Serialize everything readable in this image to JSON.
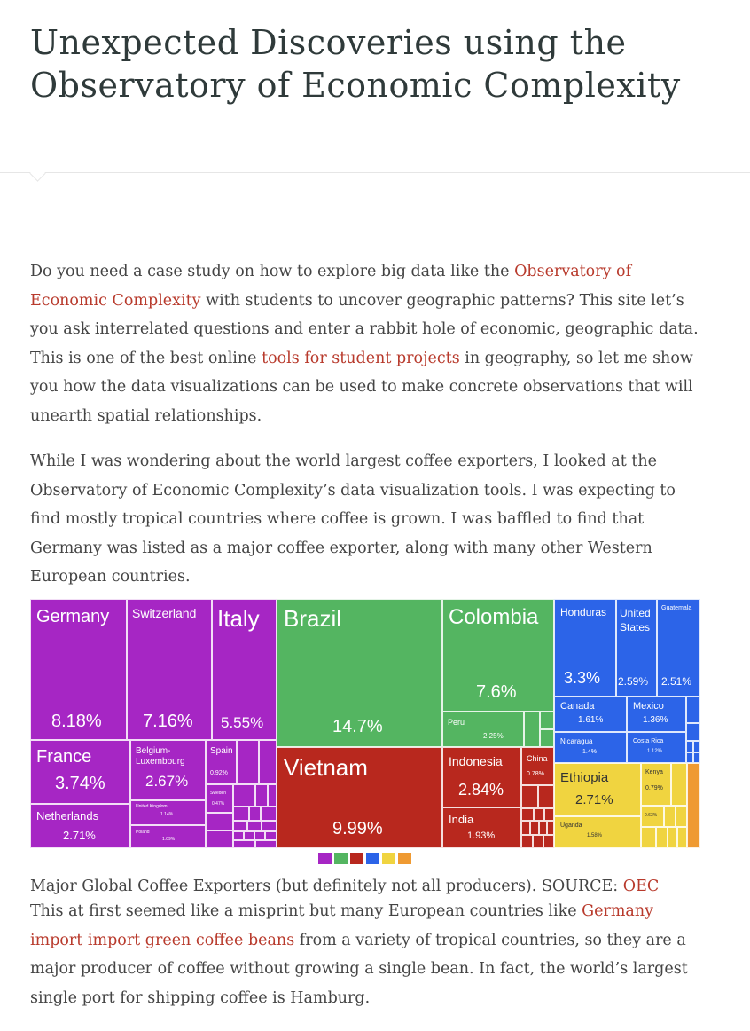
{
  "title": "Unexpected Discoveries using the Observatory of Economic Complexity",
  "intro": {
    "t1": "Do you need a case study on how to explore big data like the ",
    "link1": "Observatory of Economic Complexity",
    "t2": " with students to uncover geographic patterns? This site let’s you ask interrelated questions and enter a rabbit hole of economic, geographic data. This is one of the best online ",
    "link2": "tools for student projects",
    "t3": " in geography, so let me show you how the data visualizations can be used to make concrete observations that will unearth spatial relationships."
  },
  "paragraph2": "While I was wondering about the world largest coffee exporters, I looked at the Observatory of Economic Complexity’s data visualization tools. I was expecting to find mostly tropical countries where coffee is grown. I was baffled to find that Germany was listed as a major coffee exporter, along with many other Western European countries.",
  "treemap": {
    "germany": {
      "name": "Germany",
      "pct": "8.18%"
    },
    "switzerland": {
      "name": "Switzerland",
      "pct": "7.16%"
    },
    "italy": {
      "name": "Italy",
      "pct": "5.55%"
    },
    "france": {
      "name": "France",
      "pct": "3.74%"
    },
    "belgium": {
      "name": "Belgium-Luxembourg",
      "pct": "2.67%"
    },
    "spain": {
      "name": "Spain",
      "pct": "0.92%"
    },
    "netherlands": {
      "name": "Netherlands",
      "pct": "2.71%"
    },
    "uk": {
      "name": "United Kingdom",
      "pct": "1.14%"
    },
    "poland": {
      "name": "Poland",
      "pct": "1.09%"
    },
    "sweden": {
      "name": "Sweden",
      "pct": "0.47%"
    },
    "brazil": {
      "name": "Brazil",
      "pct": "14.7%"
    },
    "colombia": {
      "name": "Colombia",
      "pct": "7.6%"
    },
    "peru": {
      "name": "Peru",
      "pct": "2.25%"
    },
    "vietnam": {
      "name": "Vietnam",
      "pct": "9.99%"
    },
    "indonesia": {
      "name": "Indonesia",
      "pct": "2.84%"
    },
    "india": {
      "name": "India",
      "pct": "1.93%"
    },
    "china": {
      "name": "China",
      "pct": "0.78%"
    },
    "honduras": {
      "name": "Honduras",
      "pct": "3.3%"
    },
    "usa": {
      "name": "United States",
      "pct": "2.59%"
    },
    "guatemala": {
      "name": "Guatemala",
      "pct": "2.51%"
    },
    "canada": {
      "name": "Canada",
      "pct": "1.61%"
    },
    "mexico": {
      "name": "Mexico",
      "pct": "1.36%"
    },
    "nicaragua": {
      "name": "Nicaragua",
      "pct": "1.4%"
    },
    "costarica": {
      "name": "Costa Rica",
      "pct": "1.12%"
    },
    "ethiopia": {
      "name": "Ethiopia",
      "pct": "2.71%"
    },
    "kenya": {
      "name": "Kenya",
      "pct": "0.79%"
    },
    "uganda": {
      "name": "Uganda",
      "pct": "1.58%"
    },
    "small_pct": "0.63%"
  },
  "legend_colors": [
    "#a626c4",
    "#54b561",
    "#b8281e",
    "#2c64e8",
    "#f0d440",
    "#ef9a32"
  ],
  "caption": {
    "text": "Major Global Coffee Exporters (but definitely not all producers). SOURCE: ",
    "link": "OEC"
  },
  "paragraph3": {
    "t1": "This at first seemed like a misprint but many European countries like ",
    "link": "Germany import import green coffee beans",
    "t2": " from a variety of tropical countries, so they are a major producer of coffee without growing a single bean. In fact, the world’s largest single port for shipping coffee is Hamburg."
  }
}
